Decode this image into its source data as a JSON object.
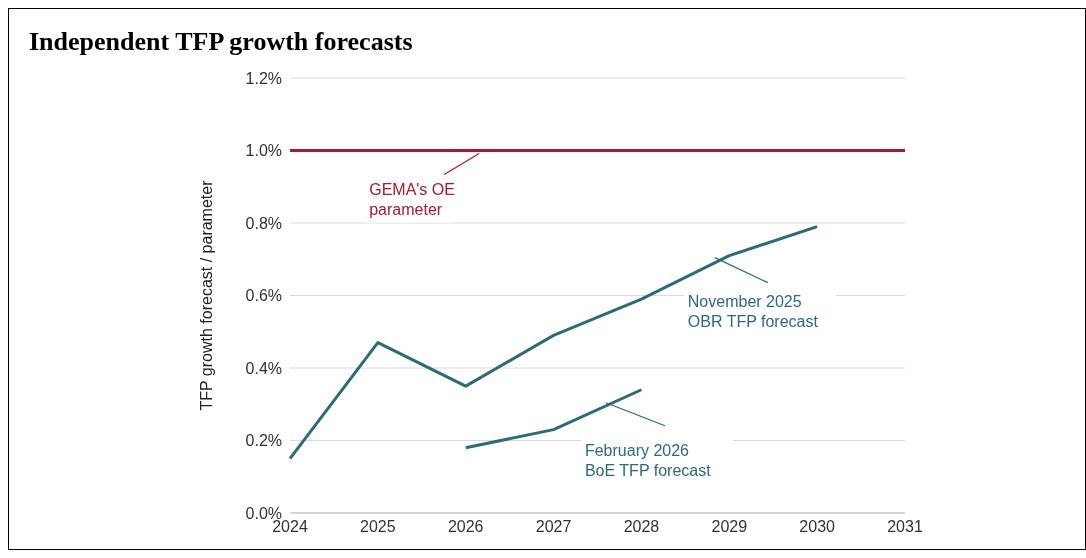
{
  "chart_data": {
    "type": "line",
    "title": "Independent TFP growth forecasts",
    "ylabel": "TFP growth forecast / parameter",
    "categories": [
      "2024",
      "2025",
      "2026",
      "2027",
      "2028",
      "2029",
      "2030",
      "2031"
    ],
    "series": [
      {
        "name": "GEMA's OE parameter",
        "color": "#a21c34",
        "values": [
          1.0,
          1.0,
          1.0,
          1.0,
          1.0,
          1.0,
          1.0,
          1.0
        ]
      },
      {
        "name": "November 2025 OBR TFP forecast",
        "color": "#2e6b73",
        "values": [
          0.15,
          0.47,
          0.35,
          0.49,
          0.59,
          0.71,
          0.79,
          null
        ]
      },
      {
        "name": "February 2026 BoE TFP forecast",
        "color": "#2e6b73",
        "values": [
          null,
          null,
          0.18,
          0.23,
          0.34,
          null,
          null,
          null
        ]
      }
    ],
    "ylim": [
      0,
      1.2
    ],
    "yticks": [
      {
        "value": 0,
        "label": "0.0%"
      },
      {
        "value": 0.2,
        "label": "0.2%"
      },
      {
        "value": 0.4,
        "label": "0.4%"
      },
      {
        "value": 0.6,
        "label": "0.6%"
      },
      {
        "value": 0.8,
        "label": "0.8%"
      },
      {
        "value": 1.0,
        "label": "1.0%"
      },
      {
        "value": 1.2,
        "label": "1.2%"
      }
    ],
    "grid": "y",
    "legend": "center",
    "marker": "none",
    "line_style": "solid"
  }
}
